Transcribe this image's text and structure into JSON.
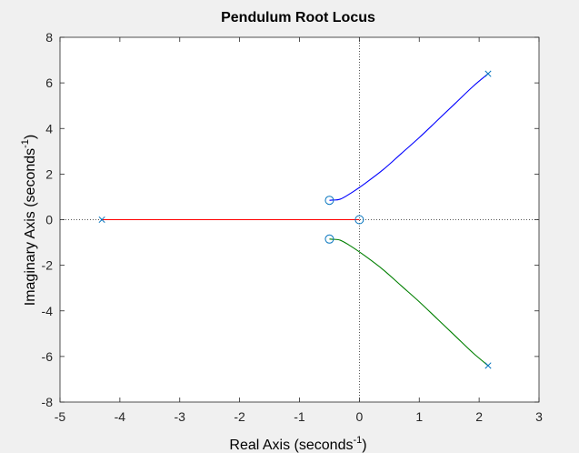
{
  "chart_data": {
    "type": "line",
    "title": "Pendulum Root Locus",
    "xlabel": "Real Axis (seconds",
    "xlabel_sup": "-1",
    "xlabel_end": ")",
    "ylabel": "Imaginary Axis (seconds",
    "ylabel_sup": "-1",
    "ylabel_end": ")",
    "xlim": [
      -5,
      3
    ],
    "ylim": [
      -8,
      8
    ],
    "xticks": [
      -5,
      -4,
      -3,
      -2,
      -1,
      0,
      1,
      2,
      3
    ],
    "yticks": [
      -8,
      -6,
      -4,
      -2,
      0,
      2,
      4,
      6,
      8
    ],
    "grid": false,
    "reference_lines": {
      "x": 0,
      "y": 0,
      "style": "dotted"
    },
    "series": [
      {
        "color": "#0000ff",
        "x": [
          2.15,
          1.9,
          1.6,
          1.3,
          1.0,
          0.7,
          0.4,
          0.1,
          -0.15,
          -0.32,
          -0.45,
          -0.5
        ],
        "y": [
          6.4,
          5.85,
          5.1,
          4.35,
          3.6,
          2.9,
          2.2,
          1.6,
          1.15,
          0.9,
          0.86,
          0.85
        ]
      },
      {
        "color": "#007f00",
        "x": [
          2.15,
          1.9,
          1.6,
          1.3,
          1.0,
          0.7,
          0.4,
          0.1,
          -0.15,
          -0.32,
          -0.45,
          -0.5
        ],
        "y": [
          -6.4,
          -5.85,
          -5.1,
          -4.35,
          -3.6,
          -2.9,
          -2.2,
          -1.6,
          -1.15,
          -0.9,
          -0.86,
          -0.85
        ]
      },
      {
        "color": "#ff0000",
        "x": [
          -4.3,
          0
        ],
        "y": [
          0,
          0
        ]
      }
    ],
    "poles": [
      {
        "x": -4.3,
        "y": 0
      },
      {
        "x": 2.15,
        "y": 6.4
      },
      {
        "x": 2.15,
        "y": -6.4
      }
    ],
    "zeros": [
      {
        "x": -0.5,
        "y": 0.85
      },
      {
        "x": -0.5,
        "y": -0.85
      },
      {
        "x": 0,
        "y": 0
      }
    ],
    "marker_color": "#0072bd"
  }
}
